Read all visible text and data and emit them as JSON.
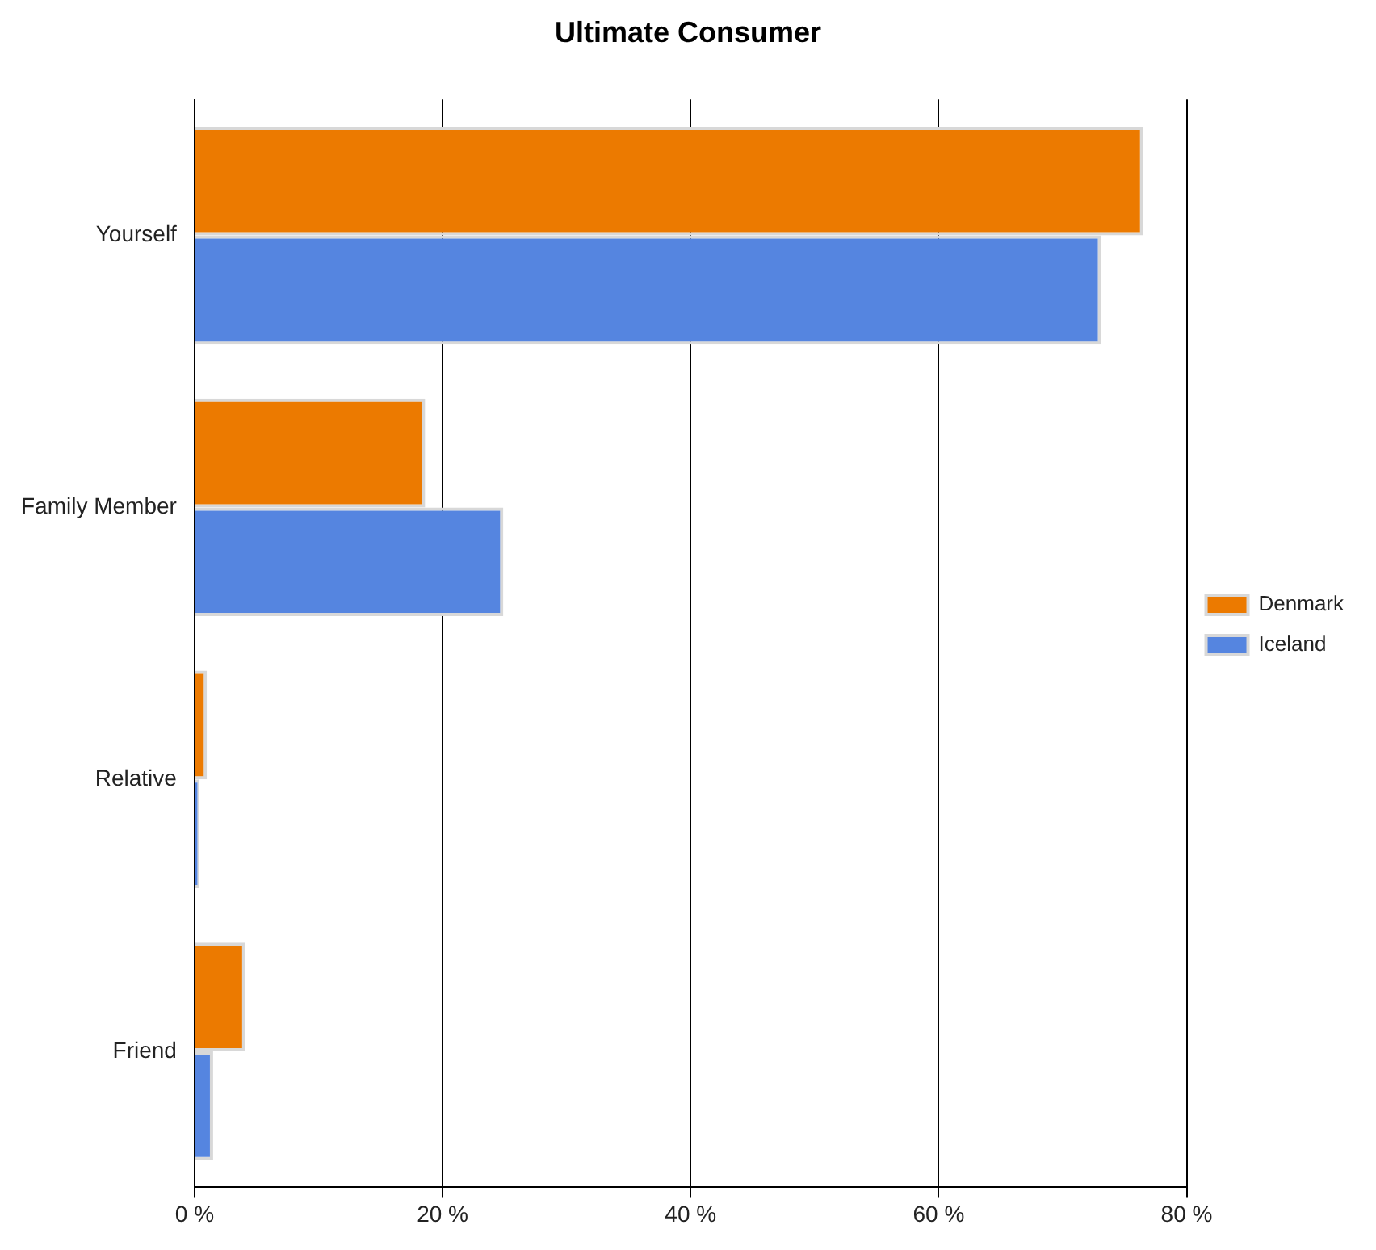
{
  "chart_data": {
    "type": "bar",
    "orientation": "horizontal",
    "title": "Ultimate Consumer",
    "categories": [
      "Yourself",
      "Family Member",
      "Relative",
      "Friend"
    ],
    "series": [
      {
        "name": "Denmark",
        "color": "#ec7a00",
        "values": [
          76.5,
          18.6,
          1.0,
          4.1
        ]
      },
      {
        "name": "Iceland",
        "color": "#5585e0",
        "values": [
          73.1,
          24.9,
          0.4,
          1.5
        ]
      }
    ],
    "xlim": [
      0,
      80
    ],
    "xticks": [
      {
        "value": 0,
        "label": "0 %"
      },
      {
        "value": 20,
        "label": "20 %"
      },
      {
        "value": 40,
        "label": "40 %"
      },
      {
        "value": 60,
        "label": "60 %"
      },
      {
        "value": 80,
        "label": "80 %"
      }
    ],
    "grid": "x",
    "legend": "right"
  }
}
